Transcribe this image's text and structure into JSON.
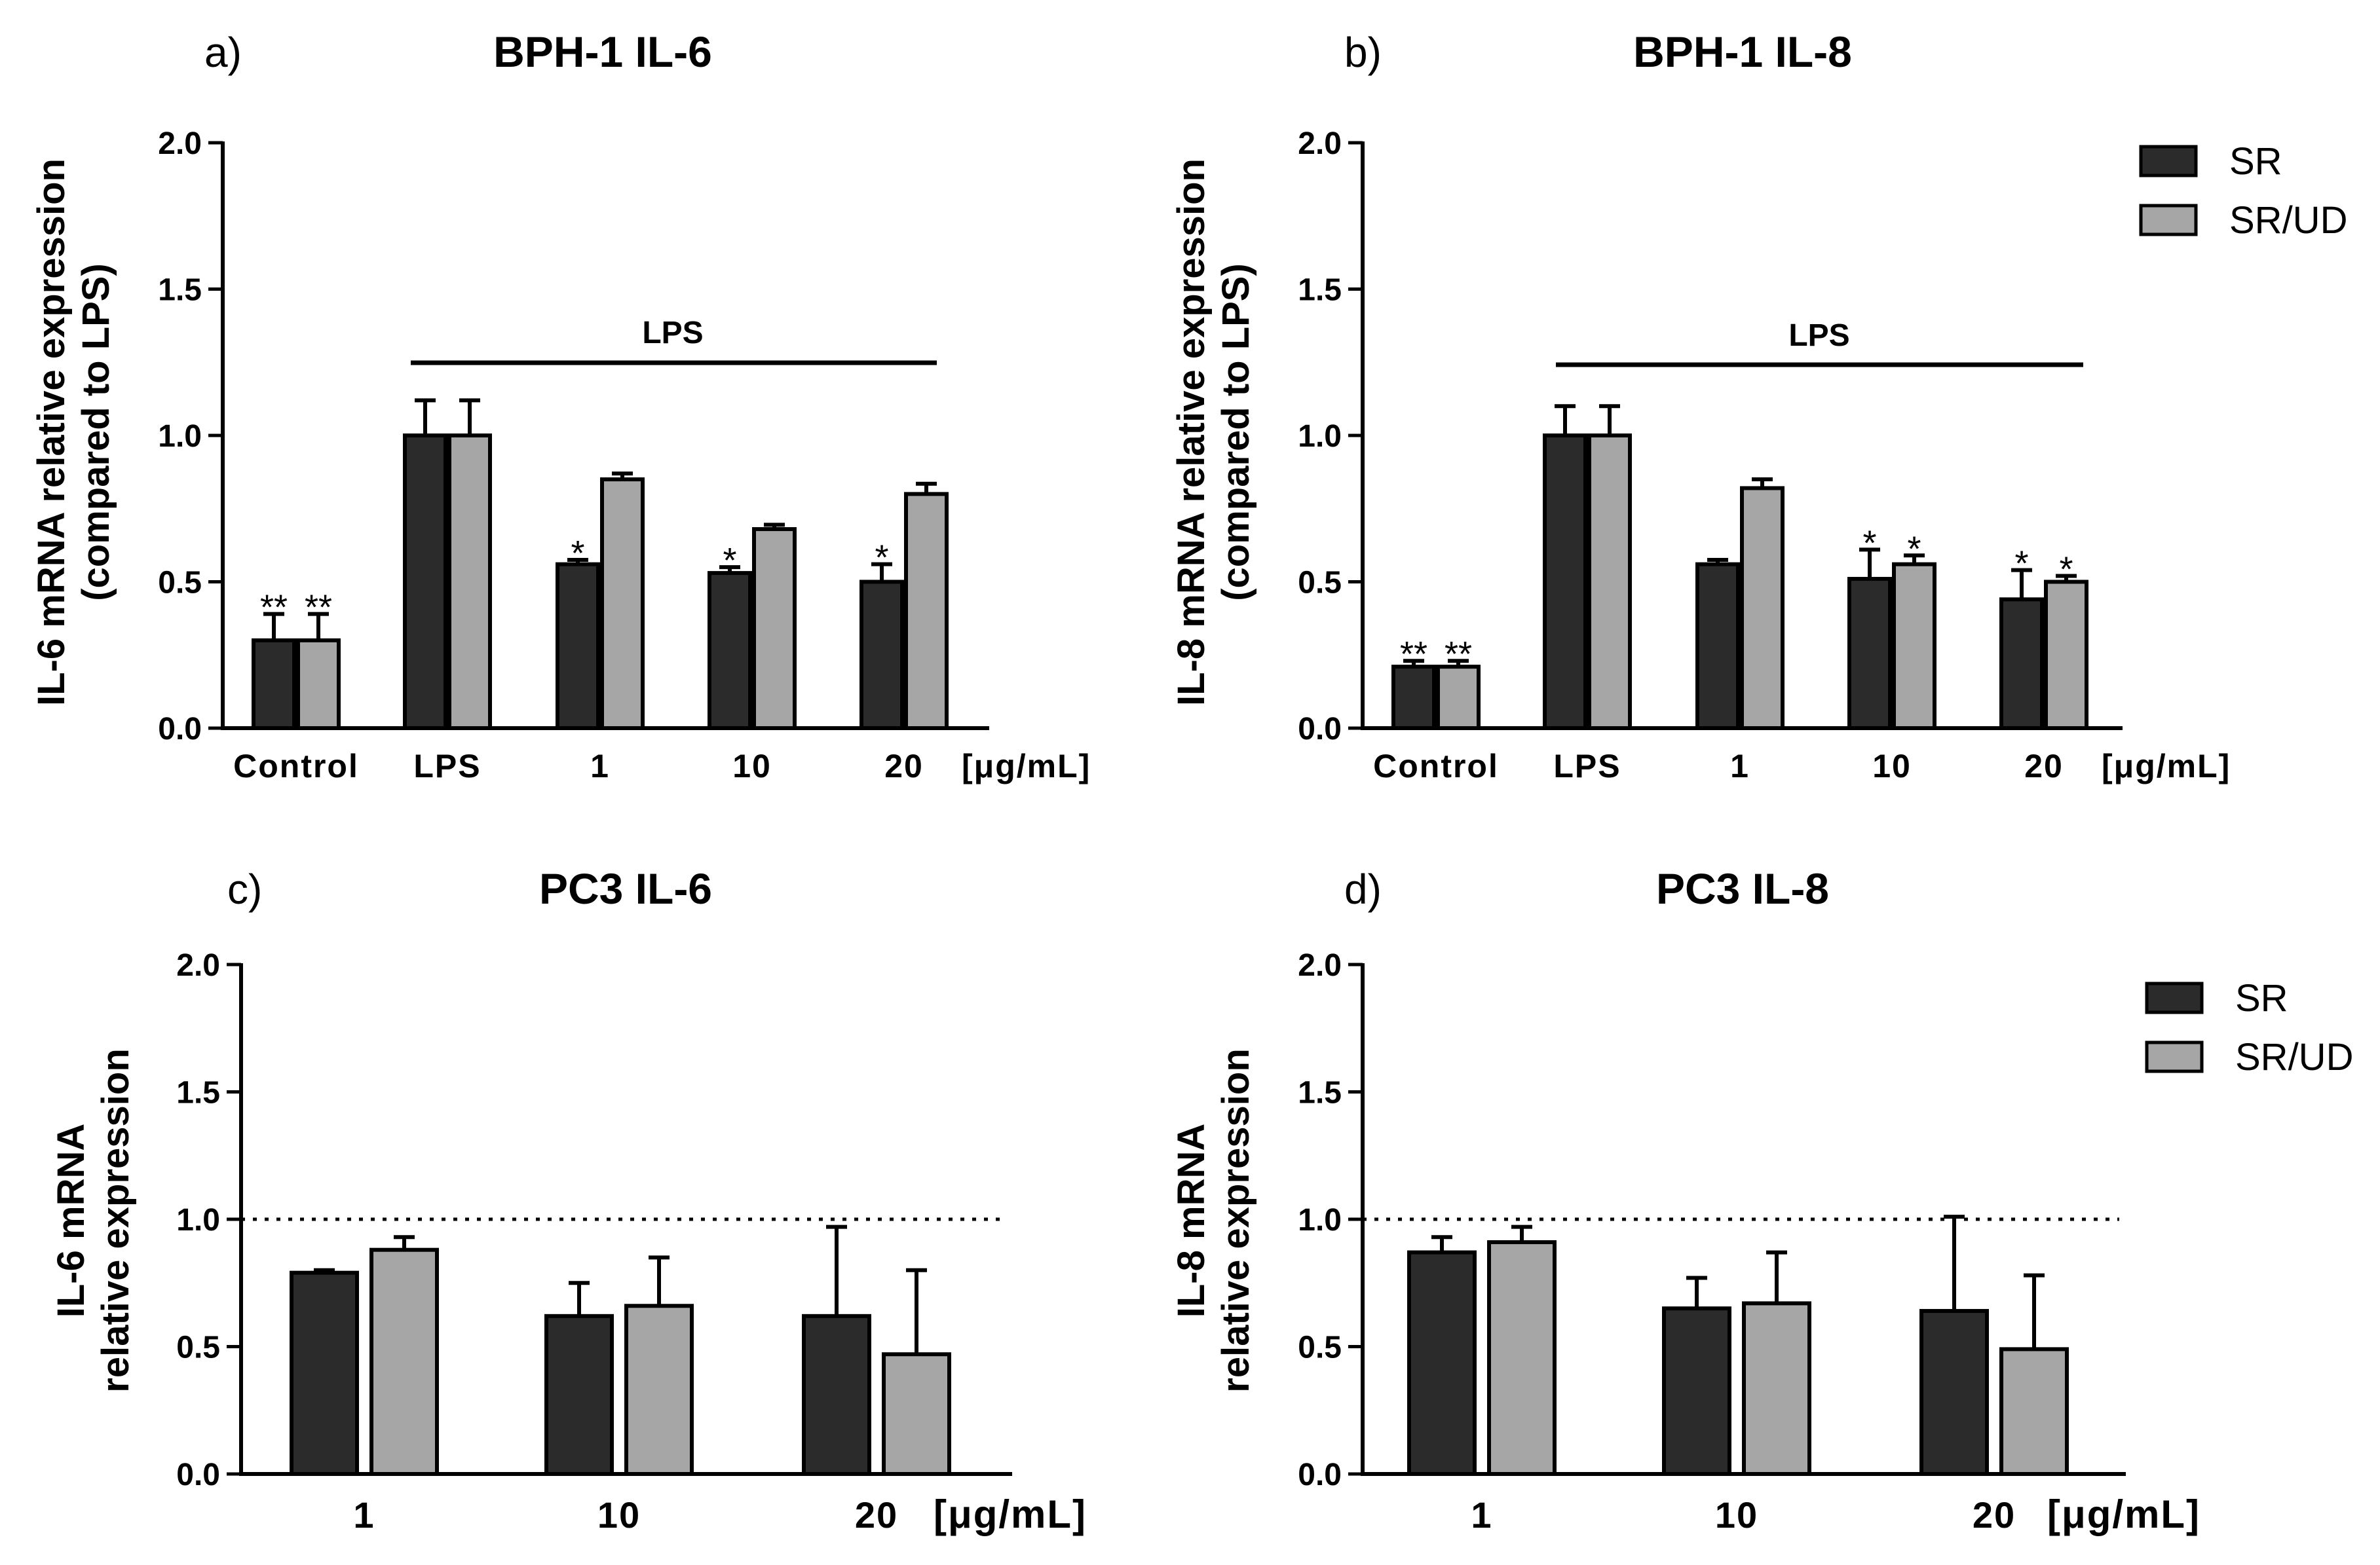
{
  "chart_data": [
    {
      "type": "bar",
      "panel": "a)",
      "title": "BPH-1 IL-6",
      "ylabel": [
        "IL-6 mRNA relative expression",
        "(compared to LPS)"
      ],
      "ylim": [
        0,
        2.0
      ],
      "yticks": [
        "0.0",
        "0.5",
        "1.0",
        "1.5",
        "2.0"
      ],
      "categories": [
        "Control",
        "LPS",
        "1",
        "10",
        "20"
      ],
      "unit_label": "[μg/mL]",
      "bracket_label": "LPS",
      "reference_line": null,
      "series": [
        {
          "name": "SR",
          "values": [
            0.3,
            1.0,
            0.56,
            0.53,
            0.5
          ],
          "errors": [
            0.09,
            0.12,
            0.015,
            0.02,
            0.06
          ],
          "sig": [
            "**",
            "",
            "*",
            "*",
            "*"
          ]
        },
        {
          "name": "SR/UD",
          "values": [
            0.3,
            1.0,
            0.85,
            0.68,
            0.8
          ],
          "errors": [
            0.09,
            0.12,
            0.02,
            0.015,
            0.035
          ],
          "sig": [
            "**",
            "",
            "",
            "",
            ""
          ]
        }
      ]
    },
    {
      "type": "bar",
      "panel": "b)",
      "title": "BPH-1 IL-8",
      "ylabel": [
        "IL-8 mRNA relative expression",
        "(compared to LPS)"
      ],
      "ylim": [
        0,
        2.0
      ],
      "yticks": [
        "0.0",
        "0.5",
        "1.0",
        "1.5",
        "2.0"
      ],
      "categories": [
        "Control",
        "LPS",
        "1",
        "10",
        "20"
      ],
      "unit_label": "[μg/mL]",
      "bracket_label": "LPS",
      "reference_line": null,
      "series": [
        {
          "name": "SR",
          "values": [
            0.21,
            1.0,
            0.56,
            0.51,
            0.44
          ],
          "errors": [
            0.02,
            0.1,
            0.015,
            0.1,
            0.1
          ],
          "sig": [
            "**",
            "",
            "",
            "*",
            "*"
          ]
        },
        {
          "name": "SR/UD",
          "values": [
            0.21,
            1.0,
            0.82,
            0.56,
            0.5
          ],
          "errors": [
            0.02,
            0.1,
            0.03,
            0.03,
            0.02
          ],
          "sig": [
            "**",
            "",
            "",
            "*",
            "*"
          ]
        }
      ]
    },
    {
      "type": "bar",
      "panel": "c)",
      "title": "PC3 IL-6",
      "ylabel": [
        "IL-6 mRNA",
        "relative expression"
      ],
      "ylim": [
        0,
        2.0
      ],
      "yticks": [
        "0.0",
        "0.5",
        "1.0",
        "1.5",
        "2.0"
      ],
      "categories": [
        "1",
        "10",
        "20"
      ],
      "unit_label": "[μg/mL]",
      "bracket_label": null,
      "reference_line": 1.0,
      "series": [
        {
          "name": "SR",
          "values": [
            0.79,
            0.62,
            0.62
          ],
          "errors": [
            0.01,
            0.13,
            0.35
          ],
          "sig": [
            "",
            "",
            ""
          ]
        },
        {
          "name": "SR/UD",
          "values": [
            0.88,
            0.66,
            0.47
          ],
          "errors": [
            0.05,
            0.19,
            0.33
          ],
          "sig": [
            "",
            "",
            ""
          ]
        }
      ]
    },
    {
      "type": "bar",
      "panel": "d)",
      "title": "PC3 IL-8",
      "ylabel": [
        "IL-8 mRNA",
        "relative expression"
      ],
      "ylim": [
        0,
        2.0
      ],
      "yticks": [
        "0.0",
        "0.5",
        "1.0",
        "1.5",
        "2.0"
      ],
      "categories": [
        "1",
        "10",
        "20"
      ],
      "unit_label": "[μg/mL]",
      "bracket_label": null,
      "reference_line": 1.0,
      "series": [
        {
          "name": "SR",
          "values": [
            0.87,
            0.65,
            0.64
          ],
          "errors": [
            0.06,
            0.12,
            0.37
          ],
          "sig": [
            "",
            "",
            ""
          ]
        },
        {
          "name": "SR/UD",
          "values": [
            0.91,
            0.67,
            0.49
          ],
          "errors": [
            0.06,
            0.2,
            0.29
          ],
          "sig": [
            "",
            "",
            ""
          ]
        }
      ]
    }
  ],
  "legend": {
    "items": [
      {
        "name": "SR",
        "color": "#2b2b2b"
      },
      {
        "name": "SR/UD",
        "color": "#a6a6a6"
      }
    ]
  },
  "colors": {
    "SR": "#2b2b2b",
    "SR/UD": "#a6a6a6",
    "outline": "#000000"
  }
}
